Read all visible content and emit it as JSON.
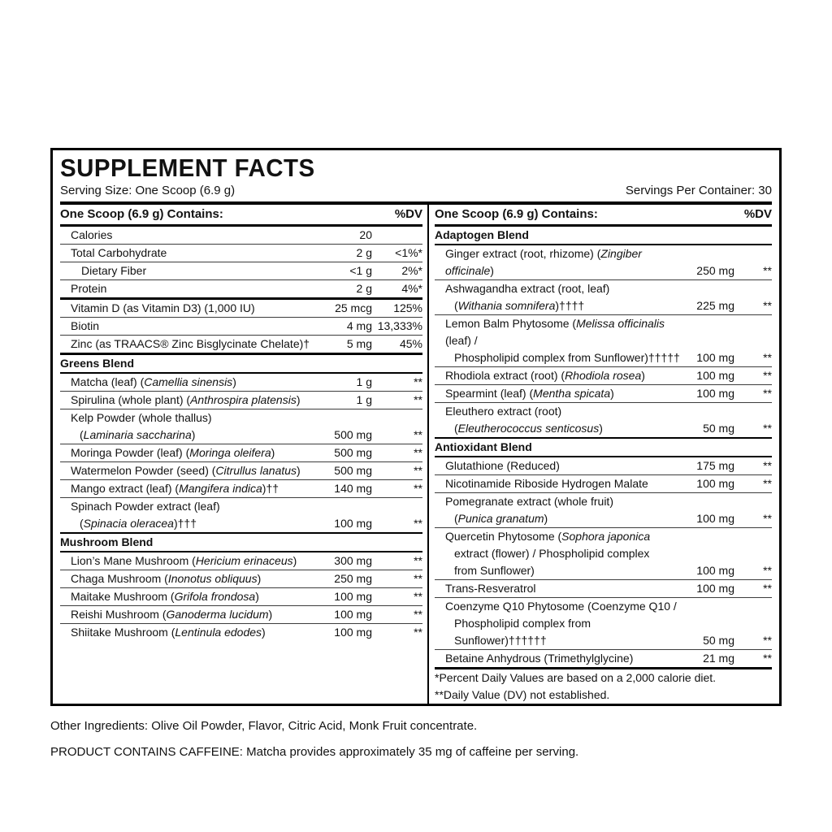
{
  "panel": {
    "title": "SUPPLEMENT FACTS",
    "serving_size": "Serving Size: One Scoop (6.9 g)",
    "servings_per_container": "Servings Per Container: 30",
    "column_header": "One Scoop (6.9 g) Contains:",
    "dv_header": "%DV"
  },
  "columns": {
    "left": [
      {
        "kind": "row",
        "rule": "none",
        "lines": [
          "Calories"
        ],
        "amount": "20",
        "dv": ""
      },
      {
        "kind": "row",
        "rule": "thin",
        "lines": [
          "Total Carbohydrate"
        ],
        "amount": "2 g",
        "dv": "<1%*"
      },
      {
        "kind": "row",
        "rule": "thin",
        "sub": true,
        "lines": [
          "Dietary Fiber"
        ],
        "amount": "<1 g",
        "dv": "2%*"
      },
      {
        "kind": "row",
        "rule": "thin",
        "lines": [
          "Protein"
        ],
        "amount": "2 g",
        "dv": "4%*"
      },
      {
        "kind": "row",
        "rule": "thick",
        "lines": [
          "Vitamin D (as Vitamin D3) (1,000 IU)"
        ],
        "amount": "25 mcg",
        "dv": "125%"
      },
      {
        "kind": "row",
        "rule": "thin",
        "lines": [
          "Biotin"
        ],
        "amount": "4 mg",
        "dv": "13,333%"
      },
      {
        "kind": "row",
        "rule": "thin",
        "lines": [
          "Zinc (as TRAACS® Zinc Bisglycinate Chelate)†"
        ],
        "amount": "5 mg",
        "dv": "45%"
      },
      {
        "kind": "header",
        "rule": "thick",
        "lines": [
          "Greens Blend"
        ]
      },
      {
        "kind": "row",
        "rule": "med",
        "lines": [
          "Matcha (leaf) ({Camellia sinensis})"
        ],
        "amount": "1 g",
        "dv": "**"
      },
      {
        "kind": "row",
        "rule": "thin",
        "lines": [
          "Spirulina (whole plant) ({Anthrospira platensis})"
        ],
        "amount": "1 g",
        "dv": "**"
      },
      {
        "kind": "row",
        "rule": "thin",
        "lines": [
          "Kelp Powder (whole thallus)",
          "({Laminaria saccharina})"
        ],
        "amount": "500 mg",
        "dv": "**"
      },
      {
        "kind": "row",
        "rule": "thin",
        "lines": [
          "Moringa Powder (leaf) ({Moringa oleifera})"
        ],
        "amount": "500 mg",
        "dv": "**"
      },
      {
        "kind": "row",
        "rule": "thin",
        "lines": [
          "Watermelon Powder (seed) ({Citrullus lanatus})"
        ],
        "amount": "500 mg",
        "dv": "**"
      },
      {
        "kind": "row",
        "rule": "thin",
        "lines": [
          "Mango extract (leaf) ({Mangifera indica})††"
        ],
        "amount": "140 mg",
        "dv": "**"
      },
      {
        "kind": "row",
        "rule": "thin",
        "lines": [
          "Spinach Powder extract (leaf)",
          "({Spinacia oleracea})†††"
        ],
        "amount": "100 mg",
        "dv": "**"
      },
      {
        "kind": "header",
        "rule": "med",
        "lines": [
          "Mushroom Blend"
        ]
      },
      {
        "kind": "row",
        "rule": "med",
        "lines": [
          "Lion’s Mane Mushroom ({Hericium erinaceus})"
        ],
        "amount": "300 mg",
        "dv": "**"
      },
      {
        "kind": "row",
        "rule": "thin",
        "lines": [
          "Chaga Mushroom ({Inonotus obliquus})"
        ],
        "amount": "250 mg",
        "dv": "**"
      },
      {
        "kind": "row",
        "rule": "thin",
        "lines": [
          "Maitake Mushroom ({Grifola frondosa})"
        ],
        "amount": "100 mg",
        "dv": "**"
      },
      {
        "kind": "row",
        "rule": "thin",
        "lines": [
          "Reishi Mushroom ({Ganoderma lucidum})"
        ],
        "amount": "100 mg",
        "dv": "**"
      },
      {
        "kind": "row",
        "rule": "thin",
        "lines": [
          "Shiitake Mushroom ({Lentinula edodes})"
        ],
        "amount": "100 mg",
        "dv": "**"
      }
    ],
    "right": [
      {
        "kind": "header",
        "rule": "none",
        "lines": [
          "Adaptogen Blend"
        ]
      },
      {
        "kind": "row",
        "rule": "med",
        "lines": [
          "Ginger extract (root, rhizome) ({Zingiber officinale})"
        ],
        "amount": "250 mg",
        "dv": "**"
      },
      {
        "kind": "row",
        "rule": "thin",
        "lines": [
          "Ashwagandha extract (root, leaf)",
          "({Withania somnifera})††††"
        ],
        "amount": "225 mg",
        "dv": "**"
      },
      {
        "kind": "row",
        "rule": "thin",
        "lines": [
          "Lemon Balm Phytosome ({Melissa officinalis} (leaf) /",
          "Phospholipid complex from Sunflower)†††††"
        ],
        "amount": "100 mg",
        "dv": "**"
      },
      {
        "kind": "row",
        "rule": "thin",
        "lines": [
          "Rhodiola extract (root) ({Rhodiola rosea})"
        ],
        "amount": "100 mg",
        "dv": "**"
      },
      {
        "kind": "row",
        "rule": "thin",
        "lines": [
          "Spearmint (leaf) ({Mentha spicata})"
        ],
        "amount": "100 mg",
        "dv": "**"
      },
      {
        "kind": "row",
        "rule": "thin",
        "lines": [
          "Eleuthero extract (root)",
          "({Eleutherococcus senticosus})"
        ],
        "amount": "50 mg",
        "dv": "**"
      },
      {
        "kind": "header",
        "rule": "med",
        "lines": [
          "Antioxidant Blend"
        ]
      },
      {
        "kind": "row",
        "rule": "med",
        "lines": [
          "Glutathione (Reduced)"
        ],
        "amount": "175 mg",
        "dv": "**"
      },
      {
        "kind": "row",
        "rule": "thin",
        "lines": [
          "Nicotinamide Riboside Hydrogen Malate"
        ],
        "amount": "100 mg",
        "dv": "**"
      },
      {
        "kind": "row",
        "rule": "thin",
        "lines": [
          "Pomegranate extract (whole fruit)",
          "({Punica granatum})"
        ],
        "amount": "100 mg",
        "dv": "**"
      },
      {
        "kind": "row",
        "rule": "thin",
        "lines": [
          "Quercetin Phytosome ({Sophora japonica}",
          "extract (flower) / Phospholipid complex",
          "from Sunflower)"
        ],
        "amount": "100 mg",
        "dv": "**"
      },
      {
        "kind": "row",
        "rule": "thin",
        "lines": [
          "Trans-Resveratrol"
        ],
        "amount": "100 mg",
        "dv": "**"
      },
      {
        "kind": "row",
        "rule": "thin",
        "lines": [
          "Coenzyme Q10 Phytosome (Coenzyme Q10 /",
          "Phospholipid complex from Sunflower)††††††"
        ],
        "amount": "50 mg",
        "dv": "**"
      },
      {
        "kind": "row",
        "rule": "thin",
        "lines": [
          "Betaine Anhydrous (Trimethylglycine)"
        ],
        "amount": "21 mg",
        "dv": "**"
      },
      {
        "kind": "note",
        "rule": "thick",
        "lines": [
          "*Percent Daily Values are based on a 2,000 calorie diet."
        ]
      },
      {
        "kind": "note",
        "rule": "none",
        "lines": [
          "**Daily Value (DV) not established."
        ]
      }
    ]
  },
  "footer": {
    "other_ingredients": "Other Ingredients: Olive Oil Powder, Flavor, Citric Acid, Monk Fruit concentrate.",
    "caffeine_notice": "PRODUCT CONTAINS CAFFEINE: Matcha provides approximately 35 mg of caffeine per serving."
  }
}
